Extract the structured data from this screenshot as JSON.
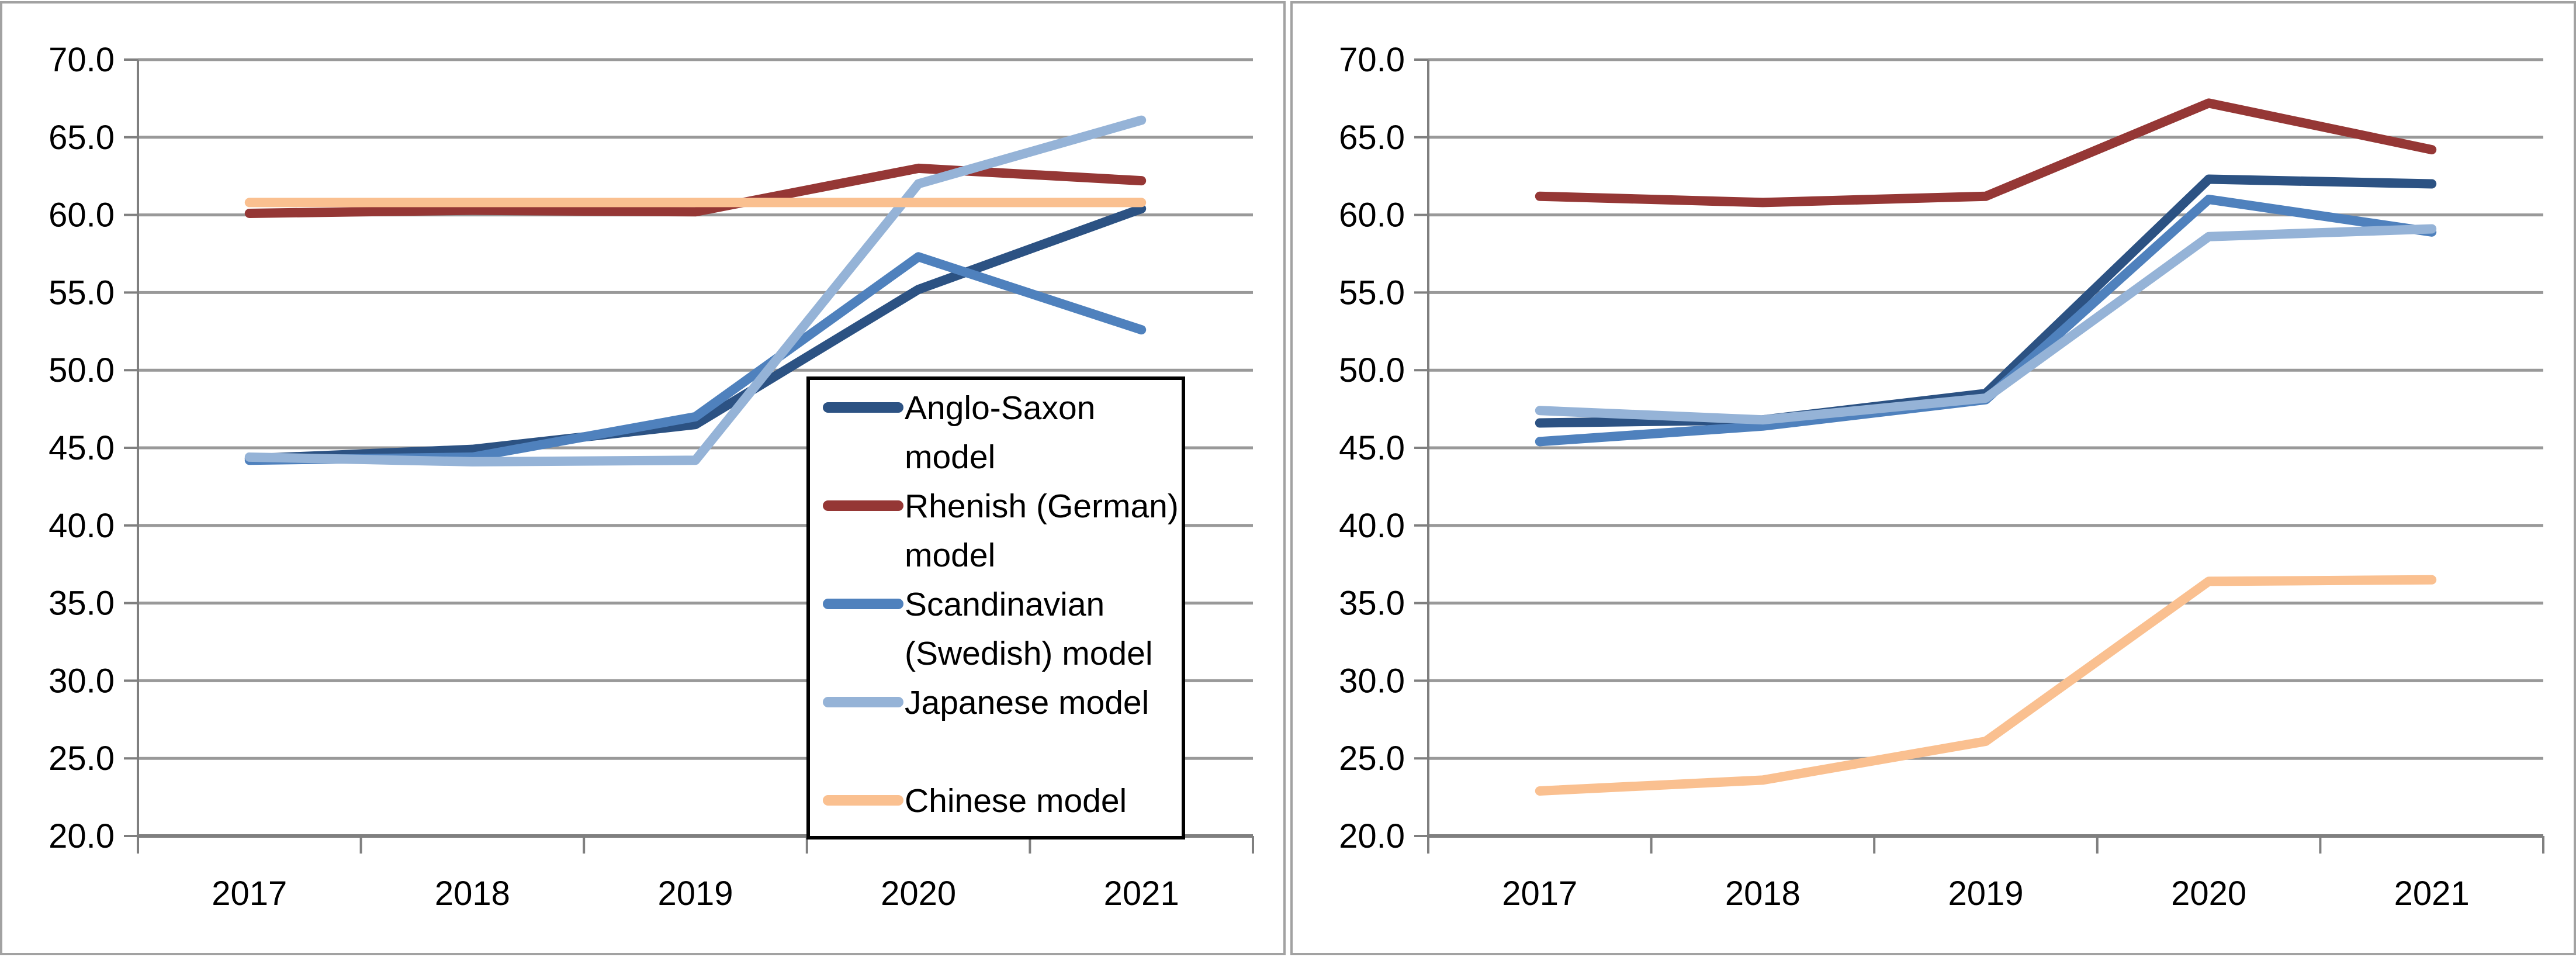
{
  "page": {
    "background": "#ffffff",
    "panel_border_color": "#a2a2a2",
    "gridline_color": "#999999",
    "axis_color": "#7f7f7f",
    "legend_border_color": "#000000",
    "text_color": "#000000"
  },
  "chart_data": [
    {
      "type": "line",
      "panel": "left",
      "title": "",
      "xlabel": "",
      "ylabel": "",
      "categories": [
        "2017",
        "2018",
        "2019",
        "2020",
        "2021"
      ],
      "ylim": [
        20.0,
        70.0
      ],
      "ytick_step": 5.0,
      "ytick_labels": [
        "70.0",
        "65.0",
        "60.0",
        "55.0",
        "50.0",
        "45.0",
        "40.0",
        "35.0",
        "30.0",
        "25.0",
        "20.0"
      ],
      "grid": true,
      "legend_visible": true,
      "legend_position": "inside-right",
      "series": [
        {
          "name": "Anglo-Saxon model",
          "color": "#2c5283",
          "values": [
            44.3,
            44.9,
            46.5,
            55.2,
            60.4
          ]
        },
        {
          "name": "Rhenish (German) model",
          "color": "#953735",
          "values": [
            60.1,
            60.3,
            60.2,
            63.0,
            62.2
          ]
        },
        {
          "name": "Scandinavian (Swedish) model",
          "color": "#4f81bd",
          "values": [
            44.2,
            44.4,
            47.0,
            57.3,
            52.6
          ]
        },
        {
          "name": "Japanese model",
          "color": "#95b3d7",
          "values": [
            44.4,
            44.1,
            44.2,
            62.0,
            66.1
          ]
        },
        {
          "name": "Chinese model",
          "color": "#fac090",
          "values": [
            60.8,
            60.8,
            60.8,
            60.8,
            60.8
          ]
        }
      ]
    },
    {
      "type": "line",
      "panel": "right",
      "title": "",
      "xlabel": "",
      "ylabel": "",
      "categories": [
        "2017",
        "2018",
        "2019",
        "2020",
        "2021"
      ],
      "ylim": [
        20.0,
        70.0
      ],
      "ytick_step": 5.0,
      "ytick_labels": [
        "70.0",
        "65.0",
        "60.0",
        "55.0",
        "50.0",
        "45.0",
        "40.0",
        "35.0",
        "30.0",
        "25.0",
        "20.0"
      ],
      "grid": true,
      "legend_visible": false,
      "legend_position": "none",
      "series": [
        {
          "name": "Anglo-Saxon model",
          "color": "#2c5283",
          "values": [
            46.6,
            46.8,
            48.5,
            62.3,
            62.0
          ]
        },
        {
          "name": "Rhenish (German) model",
          "color": "#953735",
          "values": [
            61.2,
            60.8,
            61.2,
            67.2,
            64.2
          ]
        },
        {
          "name": "Scandinavian (Swedish) model",
          "color": "#4f81bd",
          "values": [
            45.4,
            46.4,
            48.1,
            61.0,
            58.9
          ]
        },
        {
          "name": "Japanese model",
          "color": "#95b3d7",
          "values": [
            47.4,
            46.8,
            48.2,
            58.6,
            59.1
          ]
        },
        {
          "name": "Chinese model",
          "color": "#fac090",
          "values": [
            22.9,
            23.6,
            26.1,
            36.4,
            36.5
          ]
        }
      ]
    }
  ]
}
